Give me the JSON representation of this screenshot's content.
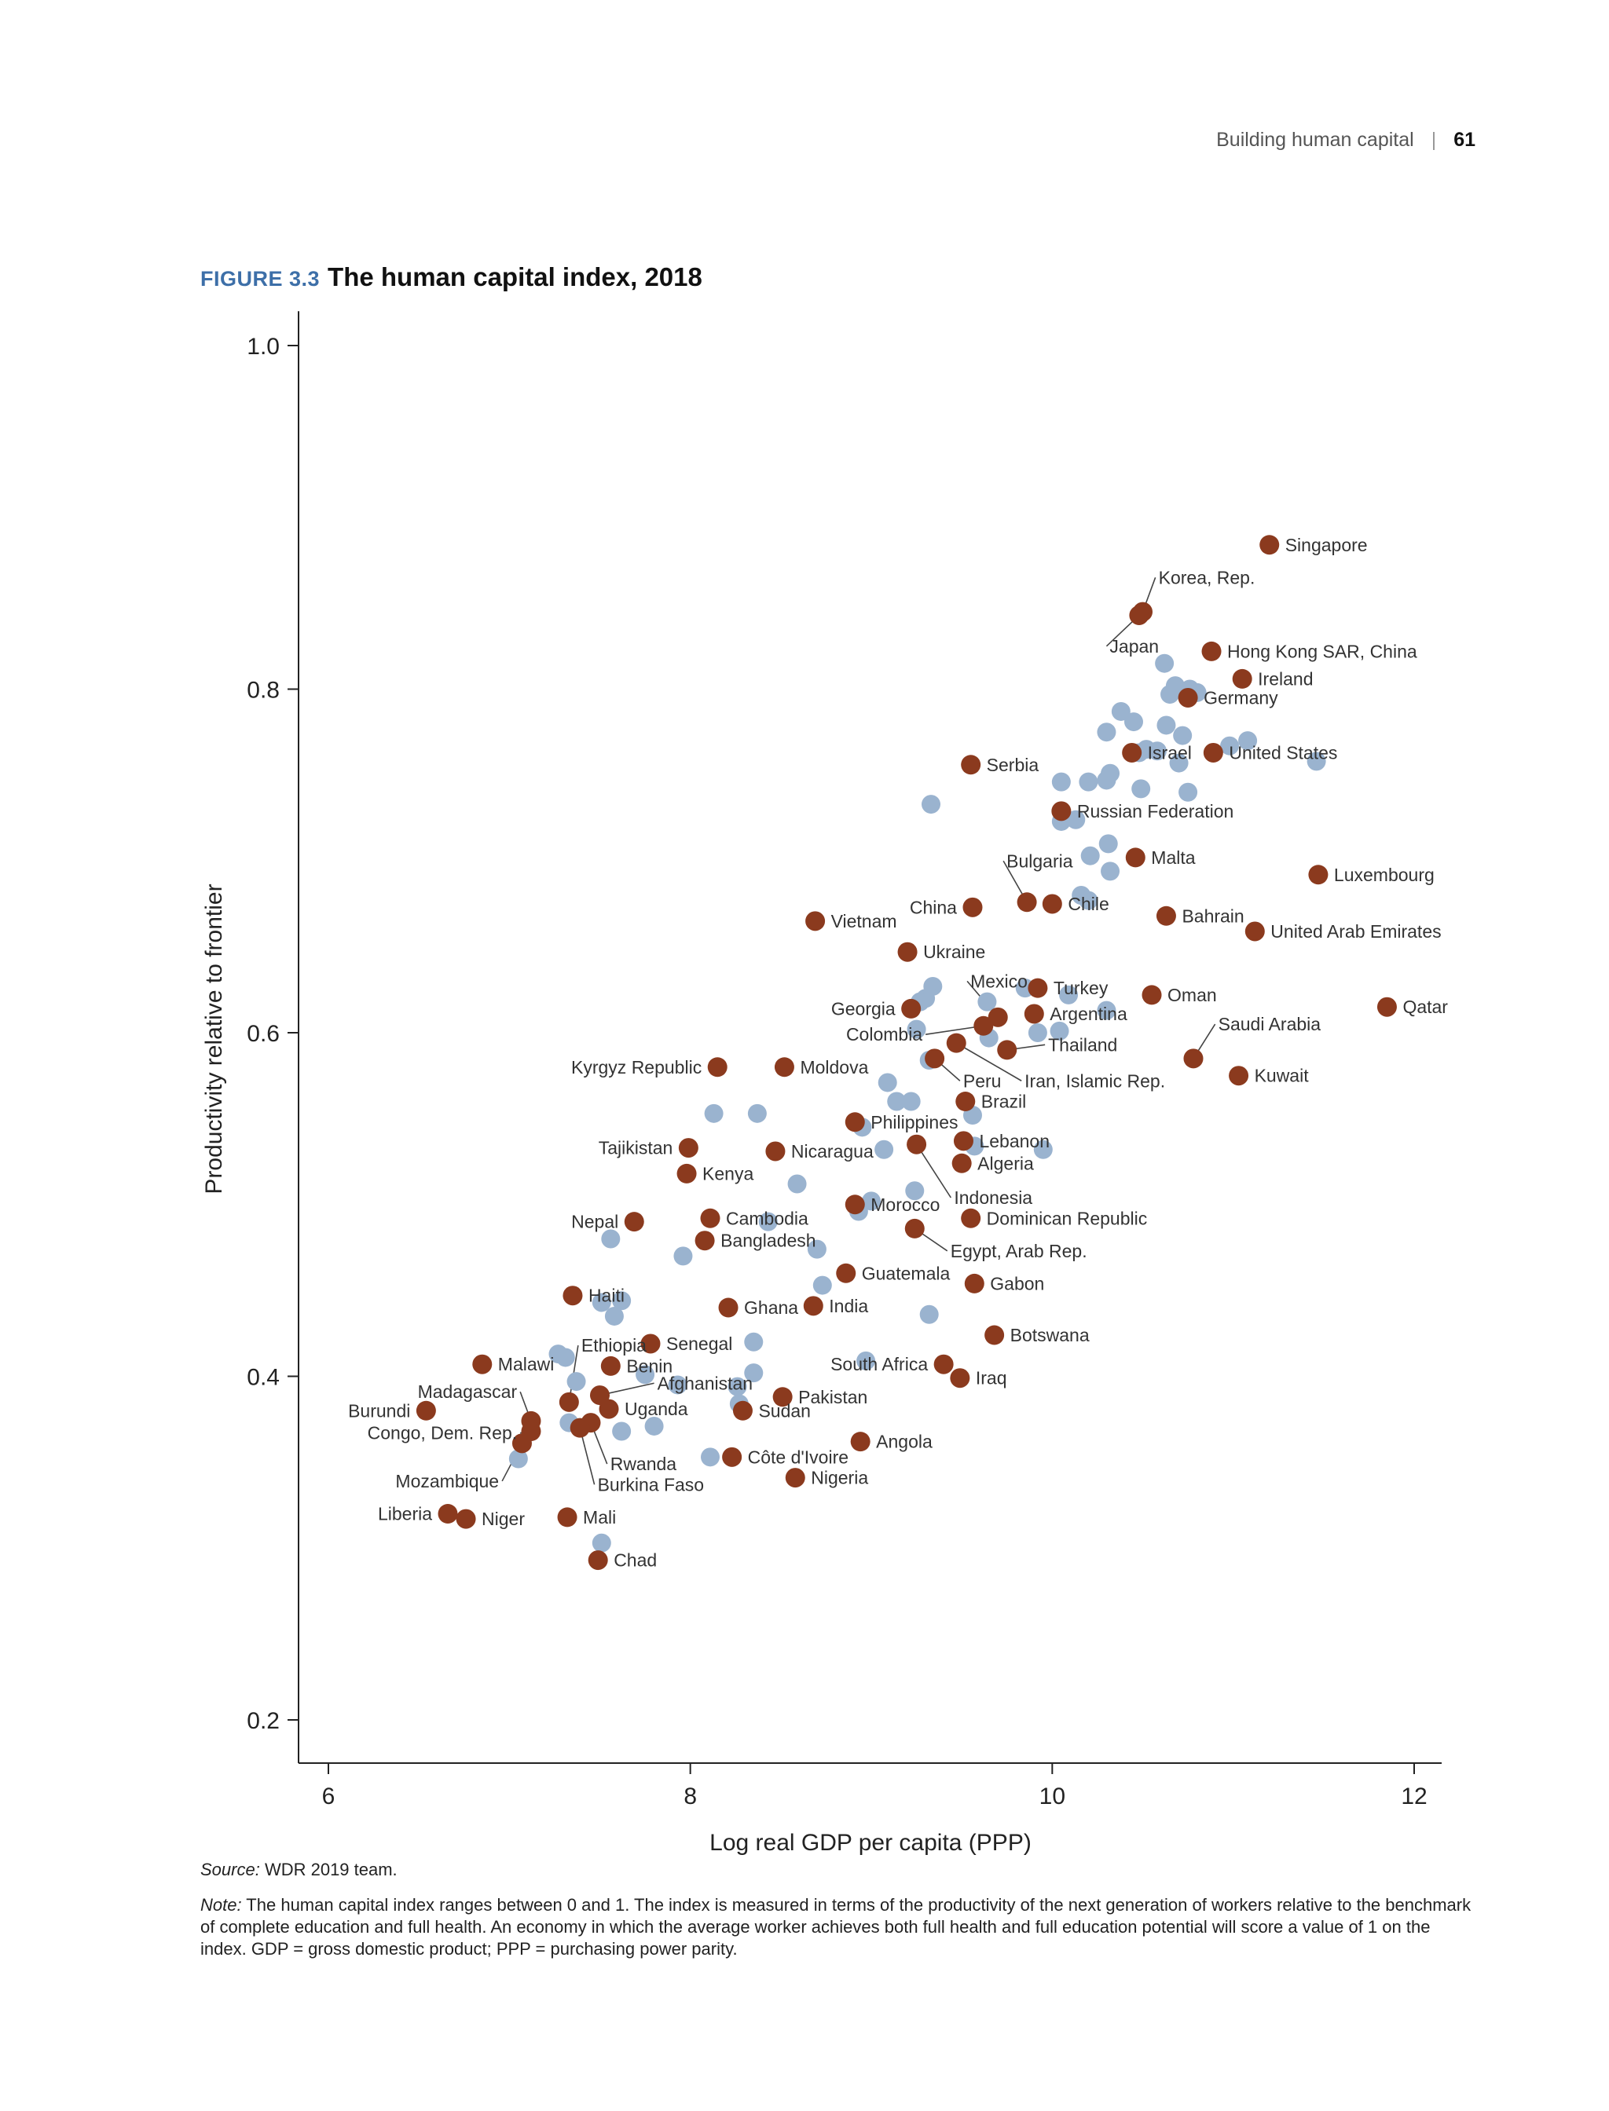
{
  "header": {
    "section": "Building human capital",
    "separator": "|",
    "page_number": "61"
  },
  "figure": {
    "label": "FIGURE 3.3",
    "title": "The human capital index, 2018"
  },
  "source": {
    "label": "Source:",
    "text": " WDR 2019 team."
  },
  "note": {
    "label": "Note:",
    "text": " The human capital index ranges between 0 and 1. The index is measured in terms of the productivity of the next generation of workers relative to the benchmark of complete education and full health. An economy in which the average worker achieves both full health and full education potential will score a value of 1 on the index. GDP = gross domestic product; PPP = purchasing power parity."
  },
  "colors": {
    "highlight": "#8b3a1e",
    "other": "#9ab3cf",
    "axis": "#222222",
    "label": "#333333"
  },
  "chart_data": {
    "type": "scatter",
    "title": "The human capital index, 2018",
    "xlabel": "Log real GDP per capita (PPP)",
    "ylabel": "Productivity relative to frontier",
    "xlim": [
      5.83,
      12.15
    ],
    "ylim": [
      0.175,
      1.02
    ],
    "xticks": [
      6,
      8,
      10,
      12
    ],
    "yticks": [
      0.2,
      0.4,
      0.6,
      0.8,
      1.0
    ],
    "xtick_labels": [
      "6",
      "8",
      "10",
      "12"
    ],
    "ytick_labels": [
      "0.2",
      "0.4",
      "0.6",
      "0.8",
      "1.0"
    ],
    "grid": false,
    "legend": "none",
    "labeled_points": [
      {
        "name": "Singapore",
        "x": 11.2,
        "y": 0.884,
        "pos": "right"
      },
      {
        "name": "Korea, Rep.",
        "x": 10.5,
        "y": 0.845,
        "pos": "leader",
        "lx": 10.57,
        "ly": 0.865
      },
      {
        "name": "Japan",
        "x": 10.48,
        "y": 0.843,
        "pos": "leader",
        "lx": 10.3,
        "ly": 0.825
      },
      {
        "name": "Hong Kong SAR, China",
        "x": 10.88,
        "y": 0.822,
        "pos": "right"
      },
      {
        "name": "Ireland",
        "x": 11.05,
        "y": 0.806,
        "pos": "right"
      },
      {
        "name": "Germany",
        "x": 10.75,
        "y": 0.795,
        "pos": "right"
      },
      {
        "name": "Israel",
        "x": 10.44,
        "y": 0.763,
        "pos": "right"
      },
      {
        "name": "United States",
        "x": 10.89,
        "y": 0.763,
        "pos": "right"
      },
      {
        "name": "Serbia",
        "x": 9.55,
        "y": 0.756,
        "pos": "right"
      },
      {
        "name": "Russian Federation",
        "x": 10.05,
        "y": 0.729,
        "pos": "right"
      },
      {
        "name": "Bulgaria",
        "x": 9.86,
        "y": 0.676,
        "pos": "leader",
        "lx": 9.73,
        "ly": 0.7
      },
      {
        "name": "Chile",
        "x": 10.0,
        "y": 0.675,
        "pos": "right"
      },
      {
        "name": "Malta",
        "x": 10.46,
        "y": 0.702,
        "pos": "right"
      },
      {
        "name": "Luxembourg",
        "x": 11.47,
        "y": 0.692,
        "pos": "right"
      },
      {
        "name": "China",
        "x": 9.56,
        "y": 0.673,
        "pos": "left"
      },
      {
        "name": "Vietnam",
        "x": 8.69,
        "y": 0.665,
        "pos": "right"
      },
      {
        "name": "Bahrain",
        "x": 10.63,
        "y": 0.668,
        "pos": "right"
      },
      {
        "name": "United Arab Emirates",
        "x": 11.12,
        "y": 0.659,
        "pos": "right"
      },
      {
        "name": "Ukraine",
        "x": 9.2,
        "y": 0.647,
        "pos": "right"
      },
      {
        "name": "Mexico",
        "x": 9.7,
        "y": 0.609,
        "pos": "leader",
        "lx": 9.53,
        "ly": 0.63
      },
      {
        "name": "Turkey",
        "x": 9.92,
        "y": 0.626,
        "pos": "right"
      },
      {
        "name": "Oman",
        "x": 10.55,
        "y": 0.622,
        "pos": "right"
      },
      {
        "name": "Qatar",
        "x": 11.85,
        "y": 0.615,
        "pos": "right"
      },
      {
        "name": "Georgia",
        "x": 9.22,
        "y": 0.614,
        "pos": "left"
      },
      {
        "name": "Argentina",
        "x": 9.9,
        "y": 0.611,
        "pos": "right"
      },
      {
        "name": "Colombia",
        "x": 9.62,
        "y": 0.604,
        "pos": "leader",
        "lx": 9.3,
        "ly": 0.599,
        "anchor": "end"
      },
      {
        "name": "Thailand",
        "x": 9.75,
        "y": 0.59,
        "pos": "leader",
        "lx": 9.96,
        "ly": 0.593
      },
      {
        "name": "Saudi Arabia",
        "x": 10.78,
        "y": 0.585,
        "pos": "leader",
        "lx": 10.9,
        "ly": 0.605
      },
      {
        "name": "Iran, Islamic Rep.",
        "x": 9.47,
        "y": 0.594,
        "pos": "leader",
        "lx": 9.83,
        "ly": 0.572
      },
      {
        "name": "Kyrgyz Republic",
        "x": 8.15,
        "y": 0.58,
        "pos": "left"
      },
      {
        "name": "Moldova",
        "x": 8.52,
        "y": 0.58,
        "pos": "right"
      },
      {
        "name": "Peru",
        "x": 9.35,
        "y": 0.585,
        "pos": "leader",
        "lx": 9.49,
        "ly": 0.572
      },
      {
        "name": "Kuwait",
        "x": 11.03,
        "y": 0.575,
        "pos": "right"
      },
      {
        "name": "Brazil",
        "x": 9.52,
        "y": 0.56,
        "pos": "right"
      },
      {
        "name": "Philippines",
        "x": 8.91,
        "y": 0.548,
        "pos": "right"
      },
      {
        "name": "Lebanon",
        "x": 9.51,
        "y": 0.537,
        "pos": "right"
      },
      {
        "name": "Tajikistan",
        "x": 7.99,
        "y": 0.533,
        "pos": "left"
      },
      {
        "name": "Nicaragua",
        "x": 8.47,
        "y": 0.531,
        "pos": "right"
      },
      {
        "name": "Indonesia",
        "x": 9.25,
        "y": 0.535,
        "pos": "leader",
        "lx": 9.44,
        "ly": 0.504
      },
      {
        "name": "Algeria",
        "x": 9.5,
        "y": 0.524,
        "pos": "right"
      },
      {
        "name": "Kenya",
        "x": 7.98,
        "y": 0.518,
        "pos": "right"
      },
      {
        "name": "Morocco",
        "x": 8.91,
        "y": 0.5,
        "pos": "right"
      },
      {
        "name": "Dominican Republic",
        "x": 9.55,
        "y": 0.492,
        "pos": "right"
      },
      {
        "name": "Nepal",
        "x": 7.69,
        "y": 0.49,
        "pos": "left"
      },
      {
        "name": "Cambodia",
        "x": 8.11,
        "y": 0.492,
        "pos": "right"
      },
      {
        "name": "Egypt, Arab Rep.",
        "x": 9.24,
        "y": 0.486,
        "pos": "leader",
        "lx": 9.42,
        "ly": 0.473
      },
      {
        "name": "Bangladesh",
        "x": 8.08,
        "y": 0.479,
        "pos": "right"
      },
      {
        "name": "Guatemala",
        "x": 8.86,
        "y": 0.46,
        "pos": "right"
      },
      {
        "name": "Gabon",
        "x": 9.57,
        "y": 0.454,
        "pos": "right"
      },
      {
        "name": "Haiti",
        "x": 7.35,
        "y": 0.447,
        "pos": "right"
      },
      {
        "name": "Ghana",
        "x": 8.21,
        "y": 0.44,
        "pos": "right"
      },
      {
        "name": "India",
        "x": 8.68,
        "y": 0.441,
        "pos": "right"
      },
      {
        "name": "Botswana",
        "x": 9.68,
        "y": 0.424,
        "pos": "right"
      },
      {
        "name": "Ethiopia",
        "x": 7.33,
        "y": 0.385,
        "pos": "leader",
        "lx": 7.38,
        "ly": 0.418
      },
      {
        "name": "Senegal",
        "x": 7.78,
        "y": 0.419,
        "pos": "right"
      },
      {
        "name": "Malawi",
        "x": 6.85,
        "y": 0.407,
        "pos": "right"
      },
      {
        "name": "Benin",
        "x": 7.56,
        "y": 0.406,
        "pos": "right"
      },
      {
        "name": "South Africa",
        "x": 9.4,
        "y": 0.407,
        "pos": "left"
      },
      {
        "name": "Iraq",
        "x": 9.49,
        "y": 0.399,
        "pos": "right"
      },
      {
        "name": "Madagascar",
        "x": 7.12,
        "y": 0.374,
        "pos": "leader",
        "lx": 7.06,
        "ly": 0.391,
        "anchor": "end"
      },
      {
        "name": "Afghanistan",
        "x": 7.5,
        "y": 0.389,
        "pos": "leader",
        "lx": 7.8,
        "ly": 0.396
      },
      {
        "name": "Pakistan",
        "x": 8.51,
        "y": 0.388,
        "pos": "right"
      },
      {
        "name": "Uganda",
        "x": 7.55,
        "y": 0.381,
        "pos": "right"
      },
      {
        "name": "Sudan",
        "x": 8.29,
        "y": 0.38,
        "pos": "right"
      },
      {
        "name": "Burundi",
        "x": 6.54,
        "y": 0.38,
        "pos": "left"
      },
      {
        "name": "Congo, Dem. Rep.",
        "x": 7.12,
        "y": 0.368,
        "pos": "leader",
        "lx": 7.06,
        "ly": 0.367,
        "anchor": "end"
      },
      {
        "name": "Angola",
        "x": 8.94,
        "y": 0.362,
        "pos": "right"
      },
      {
        "name": "Rwanda",
        "x": 7.45,
        "y": 0.373,
        "pos": "leader",
        "lx": 7.54,
        "ly": 0.349
      },
      {
        "name": "Côte d'Ivoire",
        "x": 8.23,
        "y": 0.353,
        "pos": "right"
      },
      {
        "name": "Mozambique",
        "x": 7.07,
        "y": 0.361,
        "pos": "leader",
        "lx": 6.96,
        "ly": 0.339,
        "anchor": "end"
      },
      {
        "name": "Burkina Faso",
        "x": 7.39,
        "y": 0.37,
        "pos": "leader",
        "lx": 7.47,
        "ly": 0.337
      },
      {
        "name": "Nigeria",
        "x": 8.58,
        "y": 0.341,
        "pos": "right"
      },
      {
        "name": "Liberia",
        "x": 6.66,
        "y": 0.32,
        "pos": "left"
      },
      {
        "name": "Niger",
        "x": 6.76,
        "y": 0.317,
        "pos": "right"
      },
      {
        "name": "Mali",
        "x": 7.32,
        "y": 0.318,
        "pos": "right"
      },
      {
        "name": "Chad",
        "x": 7.49,
        "y": 0.293,
        "pos": "right"
      }
    ],
    "other_points": [
      [
        10.62,
        0.815
      ],
      [
        10.68,
        0.802
      ],
      [
        10.76,
        0.8
      ],
      [
        10.8,
        0.798
      ],
      [
        10.65,
        0.797
      ],
      [
        10.38,
        0.787
      ],
      [
        10.45,
        0.781
      ],
      [
        10.63,
        0.779
      ],
      [
        10.3,
        0.775
      ],
      [
        10.72,
        0.773
      ],
      [
        11.08,
        0.77
      ],
      [
        10.98,
        0.767
      ],
      [
        10.52,
        0.765
      ],
      [
        10.48,
        0.763
      ],
      [
        10.58,
        0.764
      ],
      [
        10.7,
        0.757
      ],
      [
        11.46,
        0.758
      ],
      [
        10.05,
        0.746
      ],
      [
        10.2,
        0.746
      ],
      [
        10.3,
        0.747
      ],
      [
        10.32,
        0.751
      ],
      [
        10.49,
        0.742
      ],
      [
        10.75,
        0.74
      ],
      [
        9.33,
        0.733
      ],
      [
        10.05,
        0.723
      ],
      [
        10.13,
        0.724
      ],
      [
        10.31,
        0.71
      ],
      [
        10.21,
        0.703
      ],
      [
        10.32,
        0.694
      ],
      [
        10.16,
        0.68
      ],
      [
        10.2,
        0.677
      ],
      [
        9.34,
        0.627
      ],
      [
        9.3,
        0.62
      ],
      [
        9.27,
        0.618
      ],
      [
        9.85,
        0.626
      ],
      [
        9.64,
        0.618
      ],
      [
        10.09,
        0.622
      ],
      [
        10.3,
        0.613
      ],
      [
        9.25,
        0.602
      ],
      [
        9.92,
        0.6
      ],
      [
        10.04,
        0.601
      ],
      [
        9.65,
        0.597
      ],
      [
        9.32,
        0.584
      ],
      [
        9.09,
        0.571
      ],
      [
        9.14,
        0.56
      ],
      [
        9.22,
        0.56
      ],
      [
        9.56,
        0.552
      ],
      [
        8.13,
        0.553
      ],
      [
        8.37,
        0.553
      ],
      [
        8.95,
        0.545
      ],
      [
        9.07,
        0.532
      ],
      [
        9.57,
        0.534
      ],
      [
        9.95,
        0.532
      ],
      [
        8.59,
        0.512
      ],
      [
        9.24,
        0.508
      ],
      [
        9.0,
        0.502
      ],
      [
        8.93,
        0.496
      ],
      [
        8.43,
        0.49
      ],
      [
        7.56,
        0.48
      ],
      [
        8.7,
        0.474
      ],
      [
        7.96,
        0.47
      ],
      [
        8.73,
        0.453
      ],
      [
        7.62,
        0.444
      ],
      [
        7.51,
        0.443
      ],
      [
        7.58,
        0.435
      ],
      [
        9.32,
        0.436
      ],
      [
        8.35,
        0.42
      ],
      [
        7.27,
        0.413
      ],
      [
        8.97,
        0.409
      ],
      [
        8.35,
        0.402
      ],
      [
        7.75,
        0.401
      ],
      [
        7.37,
        0.397
      ],
      [
        7.93,
        0.395
      ],
      [
        8.26,
        0.394
      ],
      [
        8.27,
        0.384
      ],
      [
        7.33,
        0.373
      ],
      [
        7.8,
        0.371
      ],
      [
        7.62,
        0.368
      ],
      [
        7.05,
        0.352
      ],
      [
        8.11,
        0.353
      ],
      [
        7.51,
        0.303
      ],
      [
        7.31,
        0.411
      ]
    ]
  }
}
